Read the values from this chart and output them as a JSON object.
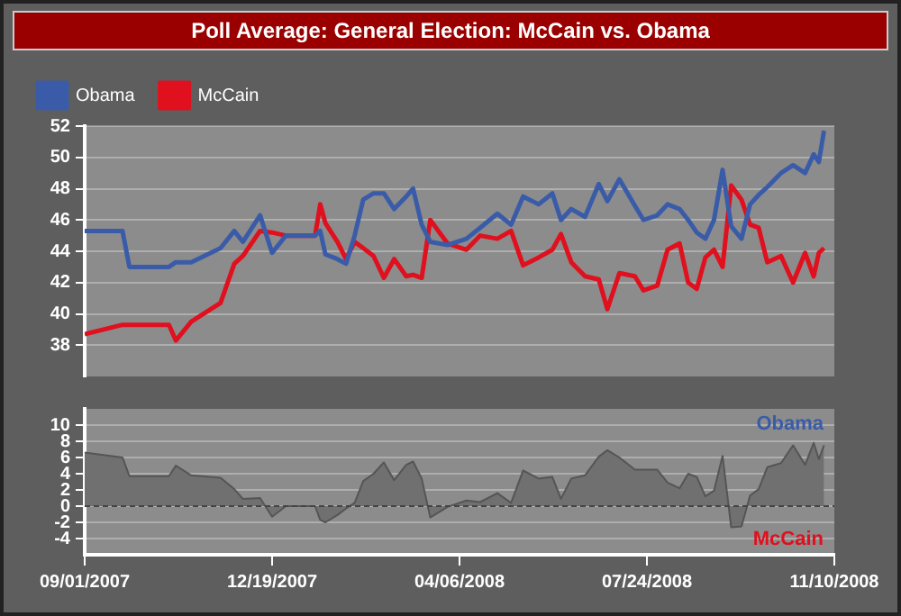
{
  "chart_data": [
    {
      "type": "line",
      "title": "Poll Average: General Election: McCain vs. Obama",
      "legend": "top left",
      "grid": "y",
      "marker": "none",
      "tick_labels": "y",
      "x": [
        "2007-09-01",
        "2007-09-23",
        "2007-09-27",
        "2007-10-20",
        "2007-10-24",
        "2007-11-02",
        "2007-11-19",
        "2007-11-27",
        "2007-12-02",
        "2007-12-12",
        "2007-12-19",
        "2007-12-27",
        "2008-01-13",
        "2008-01-16",
        "2008-01-19",
        "2008-01-26",
        "2008-01-31",
        "2008-02-05",
        "2008-02-10",
        "2008-02-16",
        "2008-02-22",
        "2008-02-28",
        "2008-03-06",
        "2008-03-10",
        "2008-03-15",
        "2008-03-20",
        "2008-03-30",
        "2008-04-10",
        "2008-04-18",
        "2008-04-28",
        "2008-05-06",
        "2008-05-13",
        "2008-05-22",
        "2008-05-30",
        "2008-06-04",
        "2008-06-10",
        "2008-06-18",
        "2008-06-26",
        "2008-07-01",
        "2008-07-08",
        "2008-07-17",
        "2008-07-22",
        "2008-07-30",
        "2008-08-05",
        "2008-08-12",
        "2008-08-17",
        "2008-08-22",
        "2008-08-27",
        "2008-09-01",
        "2008-09-06",
        "2008-09-11",
        "2008-09-17",
        "2008-09-22",
        "2008-09-27",
        "2008-10-02",
        "2008-10-10",
        "2008-10-17",
        "2008-10-24",
        "2008-10-29",
        "2008-11-01",
        "2008-11-04"
      ],
      "xlim": [
        "2007-09-01",
        "2008-11-10"
      ],
      "ylim": [
        36,
        52
      ],
      "yticks": [
        38,
        40,
        42,
        44,
        46,
        48,
        50,
        52
      ],
      "series": [
        {
          "name": "Obama",
          "color": "#3a5ca8",
          "values": [
            45.3,
            45.3,
            43.0,
            43.0,
            43.3,
            43.3,
            44.2,
            45.3,
            44.6,
            46.3,
            43.9,
            45.0,
            45.0,
            45.3,
            43.8,
            43.5,
            43.2,
            45.0,
            47.3,
            47.7,
            47.7,
            46.7,
            47.5,
            48.0,
            45.7,
            44.6,
            44.4,
            44.8,
            45.5,
            46.4,
            45.7,
            47.5,
            47.0,
            47.7,
            46.0,
            46.7,
            46.2,
            48.3,
            47.2,
            48.6,
            46.9,
            46.0,
            46.3,
            47.0,
            46.7,
            46.0,
            45.2,
            44.8,
            46.0,
            49.2,
            45.6,
            44.8,
            47.0,
            47.6,
            48.1,
            49.0,
            49.5,
            49.0,
            50.2,
            49.7,
            51.7
          ]
        },
        {
          "name": "McCain",
          "color": "#e0101e",
          "values": [
            38.7,
            39.3,
            39.3,
            39.3,
            38.3,
            39.5,
            40.7,
            43.2,
            43.7,
            45.3,
            45.2,
            45.0,
            45.0,
            47.0,
            45.8,
            44.6,
            43.5,
            44.6,
            44.2,
            43.7,
            42.3,
            43.5,
            42.4,
            42.5,
            42.3,
            46.0,
            44.5,
            44.1,
            45.0,
            44.8,
            45.3,
            43.1,
            43.6,
            44.1,
            45.1,
            43.3,
            42.4,
            42.2,
            40.3,
            42.6,
            42.4,
            41.5,
            41.8,
            44.1,
            44.5,
            42.0,
            41.6,
            43.6,
            44.1,
            43.0,
            48.2,
            47.3,
            45.7,
            45.5,
            43.3,
            43.7,
            42.0,
            43.9,
            42.4,
            43.9,
            44.2
          ]
        }
      ]
    },
    {
      "type": "area",
      "grid": "y",
      "marker": "none",
      "annotations": [
        "Obama",
        "McCain"
      ],
      "x": [
        "2007-09-01",
        "2007-09-23",
        "2007-09-27",
        "2007-10-20",
        "2007-10-24",
        "2007-11-02",
        "2007-11-19",
        "2007-11-27",
        "2007-12-02",
        "2007-12-12",
        "2007-12-19",
        "2007-12-27",
        "2008-01-13",
        "2008-01-16",
        "2008-01-19",
        "2008-01-26",
        "2008-01-31",
        "2008-02-05",
        "2008-02-10",
        "2008-02-16",
        "2008-02-22",
        "2008-02-28",
        "2008-03-06",
        "2008-03-10",
        "2008-03-15",
        "2008-03-20",
        "2008-03-30",
        "2008-04-10",
        "2008-04-18",
        "2008-04-28",
        "2008-05-06",
        "2008-05-13",
        "2008-05-22",
        "2008-05-30",
        "2008-06-04",
        "2008-06-10",
        "2008-06-18",
        "2008-06-26",
        "2008-07-01",
        "2008-07-08",
        "2008-07-17",
        "2008-07-22",
        "2008-07-30",
        "2008-08-05",
        "2008-08-12",
        "2008-08-17",
        "2008-08-22",
        "2008-08-27",
        "2008-09-01",
        "2008-09-06",
        "2008-09-11",
        "2008-09-17",
        "2008-09-22",
        "2008-09-27",
        "2008-10-02",
        "2008-10-10",
        "2008-10-17",
        "2008-10-24",
        "2008-10-29",
        "2008-11-01",
        "2008-11-04"
      ],
      "xlim": [
        "2007-09-01",
        "2008-11-10"
      ],
      "xticks": [
        {
          "value": "2007-09-01",
          "label": "09/01/2007"
        },
        {
          "value": "2007-12-19",
          "label": "12/19/2007"
        },
        {
          "value": "2008-04-06",
          "label": "04/06/2008"
        },
        {
          "value": "2008-07-24",
          "label": "07/24/2008"
        },
        {
          "value": "2008-11-10",
          "label": "11/10/2008"
        }
      ],
      "ylim": [
        -6,
        12
      ],
      "yticks": [
        -4,
        -2,
        0,
        2,
        4,
        6,
        8,
        10
      ],
      "ref_lines": [
        {
          "axis": "y",
          "value": 0,
          "color": "#444444",
          "line_style": "dashed"
        }
      ],
      "series": [
        {
          "color": "#707070",
          "values": [
            6.6,
            6.0,
            3.7,
            3.7,
            5.0,
            3.8,
            3.5,
            2.1,
            0.9,
            1.0,
            -1.3,
            0,
            0,
            -1.7,
            -2.0,
            -1.1,
            -0.3,
            0.4,
            3.1,
            4.0,
            5.4,
            3.2,
            5.1,
            5.5,
            3.4,
            -1.4,
            -0.1,
            0.7,
            0.5,
            1.6,
            0.4,
            4.4,
            3.4,
            3.6,
            0.9,
            3.4,
            3.8,
            6.1,
            6.9,
            6.0,
            4.5,
            4.5,
            4.5,
            2.9,
            2.2,
            4.0,
            3.6,
            1.2,
            1.9,
            6.2,
            -2.6,
            -2.5,
            1.3,
            2.1,
            4.8,
            5.3,
            7.5,
            5.1,
            7.8,
            5.8,
            7.5
          ]
        }
      ]
    }
  ]
}
